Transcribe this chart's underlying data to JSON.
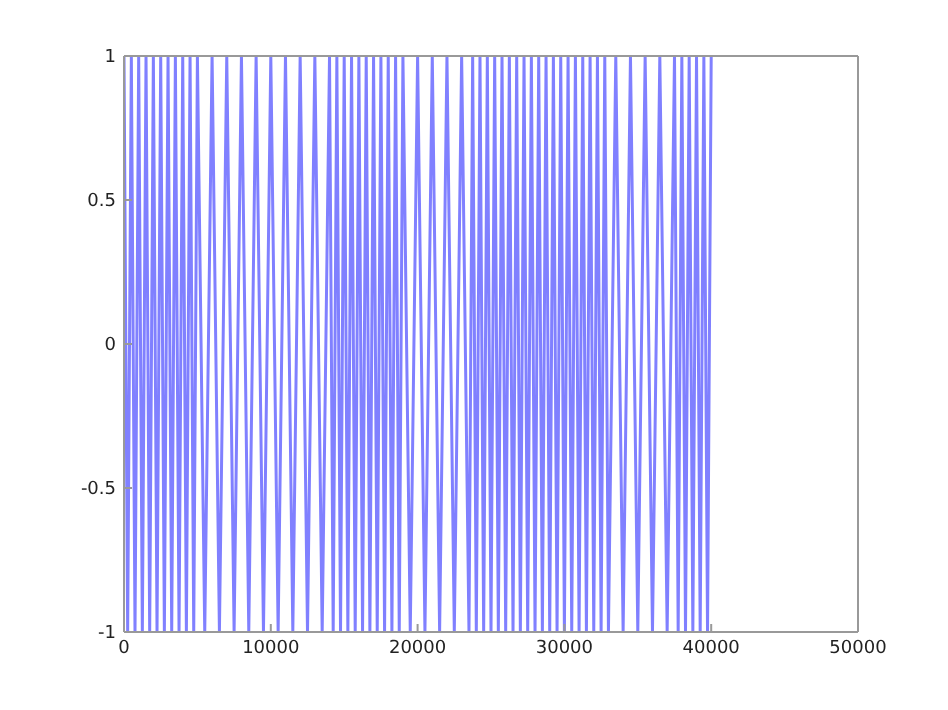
{
  "chart_data": {
    "type": "line",
    "x": [
      0,
      250,
      500,
      750,
      1000,
      1250,
      1500,
      1750,
      2000,
      2250,
      2500,
      2750,
      3000,
      3250,
      3500,
      3750,
      4000,
      4250,
      4500,
      4750,
      5000,
      5500,
      6000,
      6500,
      7000,
      7500,
      8000,
      8500,
      9000,
      9500,
      10000,
      10500,
      11000,
      11500,
      12000,
      12500,
      13000,
      13500,
      14000,
      14250,
      14500,
      14750,
      15000,
      15250,
      15500,
      15750,
      16000,
      16250,
      16500,
      16750,
      17000,
      17250,
      17500,
      17750,
      18000,
      18250,
      18500,
      18750,
      19000,
      19500,
      20000,
      20500,
      21000,
      21500,
      22000,
      22500,
      23000,
      23500,
      23750,
      24000,
      24250,
      24500,
      24750,
      25000,
      25250,
      25500,
      25750,
      26000,
      26250,
      26500,
      26750,
      27000,
      27250,
      27500,
      27750,
      28000,
      28250,
      28500,
      28750,
      29000,
      29250,
      29500,
      29750,
      30000,
      30250,
      30500,
      30750,
      31000,
      31250,
      31500,
      31750,
      32000,
      32250,
      32500,
      32750,
      33000,
      33500,
      34000,
      34500,
      35000,
      35500,
      36000,
      36500,
      37000,
      37500,
      37750,
      38000,
      38250,
      38500,
      38750,
      39000,
      39250,
      39500,
      39750,
      40000
    ],
    "series": [
      {
        "color": "#8080ff",
        "values": [
          1,
          -1,
          1,
          -1,
          1,
          -1,
          1,
          -1,
          1,
          -1,
          1,
          -1,
          1,
          -1,
          1,
          -1,
          1,
          -1,
          1,
          -1,
          1,
          -1,
          1,
          -1,
          1,
          -1,
          1,
          -1,
          1,
          -1,
          1,
          -1,
          1,
          -1,
          1,
          -1,
          1,
          -1,
          1,
          -1,
          1,
          -1,
          1,
          -1,
          1,
          -1,
          1,
          -1,
          1,
          -1,
          1,
          -1,
          1,
          -1,
          1,
          -1,
          1,
          -1,
          1,
          -1,
          1,
          -1,
          1,
          -1,
          1,
          -1,
          1,
          -1,
          1,
          -1,
          1,
          -1,
          1,
          -1,
          1,
          -1,
          1,
          -1,
          1,
          -1,
          1,
          -1,
          1,
          -1,
          1,
          -1,
          1,
          -1,
          1,
          -1,
          1,
          -1,
          1,
          -1,
          1,
          -1,
          1,
          -1,
          1,
          -1,
          1,
          -1,
          1,
          -1,
          1,
          -1,
          1,
          -1,
          1,
          -1,
          1,
          -1,
          1,
          -1,
          1,
          -1,
          1,
          -1,
          1,
          -1,
          1,
          -1,
          1,
          -1,
          1
        ]
      }
    ],
    "xlim": [
      0,
      50000
    ],
    "xticks": [
      0,
      10000,
      20000,
      30000,
      40000,
      50000
    ],
    "ylim": [
      -1,
      1
    ],
    "yticks": [
      -1,
      -0.5,
      0,
      0.5,
      1
    ],
    "grid": false,
    "legend": false,
    "marker": "none",
    "line_style": "solid"
  }
}
